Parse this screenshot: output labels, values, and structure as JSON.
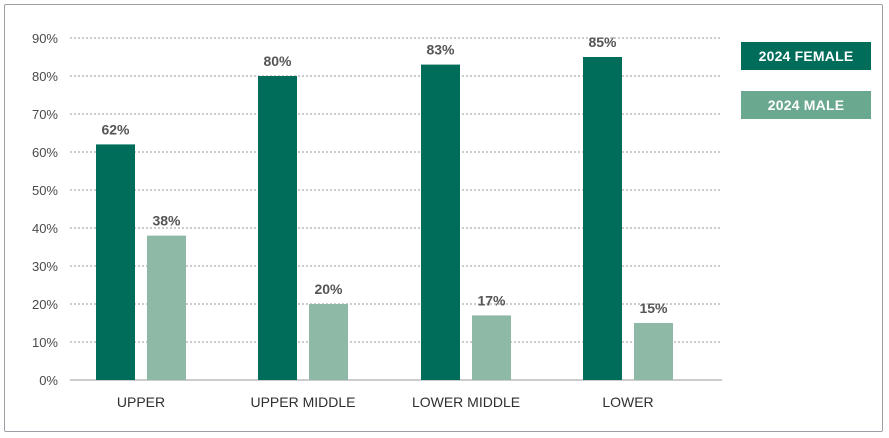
{
  "chart_data": {
    "type": "bar",
    "categories": [
      "UPPER",
      "UPPER MIDDLE",
      "LOWER MIDDLE",
      "LOWER"
    ],
    "series": [
      {
        "name": "2024 FEMALE",
        "values": [
          62,
          80,
          83,
          85
        ],
        "labels": [
          "62%",
          "80%",
          "83%",
          "85%"
        ],
        "color": "#006d5b"
      },
      {
        "name": "2024 MALE",
        "values": [
          38,
          20,
          17,
          15
        ],
        "labels": [
          "38%",
          "20%",
          "17%",
          "15%"
        ],
        "color": "#8fb9a7"
      }
    ],
    "yticks": [
      "0%",
      "10%",
      "20%",
      "30%",
      "40%",
      "50%",
      "60%",
      "70%",
      "80%",
      "90%"
    ],
    "ylim": [
      0,
      90
    ],
    "grid": true,
    "legend_position": "right",
    "legend_colors": [
      "#006d5b",
      "#6aa88f"
    ]
  }
}
